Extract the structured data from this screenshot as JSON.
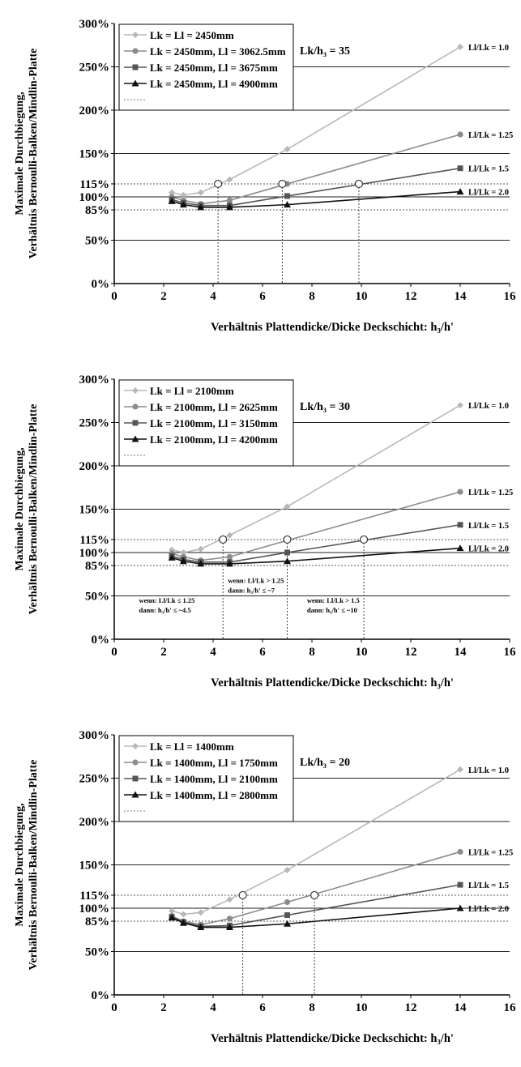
{
  "chart_data": [
    {
      "type": "line",
      "ylabel": "Maximale Durchbiegung,\nVerhältnis Bernoulli-Balken/Mindlin-Platte",
      "xlabel": "Verhältnis Plattendicke/Dicke Deckschicht: h₃/h'",
      "xlim": [
        0,
        16
      ],
      "ylim": [
        0,
        300
      ],
      "xticks": [
        0,
        2,
        4,
        6,
        8,
        10,
        12,
        14,
        16
      ],
      "yticks": [
        {
          "value": 0,
          "label": "0%"
        },
        {
          "value": 50,
          "label": "50%"
        },
        {
          "value": 85,
          "label": "85%"
        },
        {
          "value": 100,
          "label": "100%"
        },
        {
          "value": 115,
          "label": "115%"
        },
        {
          "value": 150,
          "label": "150%"
        },
        {
          "value": 200,
          "label": "200%"
        },
        {
          "value": 250,
          "label": "250%"
        },
        {
          "value": 300,
          "label": "300%"
        }
      ],
      "legend_placement": "top-left",
      "annotation": "Lk/h₃ = 35",
      "series": [
        {
          "name": "Lk = Ll = 2450mm",
          "marker": "diamond",
          "color": "#b8b8b8",
          "end_label": "Ll/Lk = 1.0",
          "x": [
            2.33,
            2.8,
            3.5,
            4.67,
            7,
            14
          ],
          "y": [
            105,
            102,
            105,
            120,
            155,
            273
          ]
        },
        {
          "name": "Lk = 2450mm, Ll = 3062.5mm",
          "marker": "circle",
          "color": "#8c8c8c",
          "end_label": "Ll/Lk = 1.25",
          "x": [
            2.33,
            2.8,
            3.5,
            4.67,
            7,
            14
          ],
          "y": [
            100,
            96,
            92,
            96,
            115,
            172
          ]
        },
        {
          "name": "Lk = 2450mm, Ll = 3675mm",
          "marker": "square",
          "color": "#555555",
          "end_label": "Ll/Lk = 1.5",
          "x": [
            2.33,
            2.8,
            3.5,
            4.67,
            7,
            14
          ],
          "y": [
            97,
            93,
            90,
            90,
            101,
            133
          ]
        },
        {
          "name": "Lk = 2450mm, Ll = 4900mm",
          "marker": "triangle",
          "color": "#111111",
          "end_label": "Ll/Lk = 2.0",
          "x": [
            2.33,
            2.8,
            3.5,
            4.67,
            7,
            14
          ],
          "y": [
            95,
            91,
            88,
            88,
            91,
            106
          ]
        }
      ],
      "intersections": [
        {
          "x": 4.2,
          "y": 115
        },
        {
          "x": 6.8,
          "y": 115
        },
        {
          "x": 9.9,
          "y": 115
        }
      ],
      "notes": []
    },
    {
      "type": "line",
      "ylabel": "Maximale Durchbiegung,\nVerhältnis Bernoulli-Balken/Mindlin-Platte",
      "xlabel": "Verhältnis Plattendicke/Dicke Deckschicht: h₃/h'",
      "xlim": [
        0,
        16
      ],
      "ylim": [
        0,
        300
      ],
      "xticks": [
        0,
        2,
        4,
        6,
        8,
        10,
        12,
        14,
        16
      ],
      "yticks": [
        {
          "value": 0,
          "label": "0%"
        },
        {
          "value": 50,
          "label": "50%"
        },
        {
          "value": 85,
          "label": "85%"
        },
        {
          "value": 100,
          "label": "100%"
        },
        {
          "value": 115,
          "label": "115%"
        },
        {
          "value": 150,
          "label": "150%"
        },
        {
          "value": 200,
          "label": "200%"
        },
        {
          "value": 250,
          "label": "250%"
        },
        {
          "value": 300,
          "label": "300%"
        }
      ],
      "legend_placement": "top-left",
      "annotation": "Lk/h₃ = 30",
      "series": [
        {
          "name": "Lk = Ll = 2100mm",
          "marker": "diamond",
          "color": "#b8b8b8",
          "end_label": "Ll/Lk = 1.0",
          "x": [
            2.33,
            2.8,
            3.5,
            4.67,
            7,
            14
          ],
          "y": [
            103,
            100,
            104,
            120,
            153,
            270
          ]
        },
        {
          "name": "Lk = 2100mm, Ll = 2625mm",
          "marker": "circle",
          "color": "#8c8c8c",
          "end_label": "Ll/Lk = 1.25",
          "x": [
            2.33,
            2.8,
            3.5,
            4.67,
            7,
            14
          ],
          "y": [
            99,
            95,
            91,
            95,
            114,
            170
          ]
        },
        {
          "name": "Lk = 2100mm, Ll = 3150mm",
          "marker": "square",
          "color": "#555555",
          "end_label": "Ll/Lk = 1.5",
          "x": [
            2.33,
            2.8,
            3.5,
            4.67,
            7,
            14
          ],
          "y": [
            96,
            92,
            89,
            89,
            100,
            132
          ]
        },
        {
          "name": "Lk = 2100mm, Ll = 4200mm",
          "marker": "triangle",
          "color": "#111111",
          "end_label": "Ll/Lk = 2.0",
          "x": [
            2.33,
            2.8,
            3.5,
            4.67,
            7,
            14
          ],
          "y": [
            94,
            90,
            87,
            87,
            90,
            105
          ]
        }
      ],
      "intersections": [
        {
          "x": 4.4,
          "y": 115
        },
        {
          "x": 7.0,
          "y": 115
        },
        {
          "x": 10.1,
          "y": 115
        }
      ],
      "notes": [
        {
          "x": 1.0,
          "y": 42,
          "lines": [
            "wenn: Ll/Lk ≤ 1.25",
            "dann: h₃/h' ≤ ~4.5"
          ]
        },
        {
          "x": 4.6,
          "y": 65,
          "lines": [
            "wenn: Ll/Lk > 1.25",
            "dann: h₃/h' ≤ ~7"
          ]
        },
        {
          "x": 7.8,
          "y": 42,
          "lines": [
            "wenn: Ll/Lk > 1.5",
            "dann: h₃/h' ≤ ~10"
          ]
        }
      ]
    },
    {
      "type": "line",
      "ylabel": "Maximale Durchbiegung,\nVerhältnis Bernoulli-Balken/Mindlin-Platte",
      "xlabel": "Verhältnis Plattendicke/Dicke Deckschicht: h₃/h'",
      "xlim": [
        0,
        16
      ],
      "ylim": [
        0,
        300
      ],
      "xticks": [
        0,
        2,
        4,
        6,
        8,
        10,
        12,
        14,
        16
      ],
      "yticks": [
        {
          "value": 0,
          "label": "0%"
        },
        {
          "value": 50,
          "label": "50%"
        },
        {
          "value": 85,
          "label": "85%"
        },
        {
          "value": 100,
          "label": "100%"
        },
        {
          "value": 115,
          "label": "115%"
        },
        {
          "value": 150,
          "label": "150%"
        },
        {
          "value": 200,
          "label": "200%"
        },
        {
          "value": 250,
          "label": "250%"
        },
        {
          "value": 300,
          "label": "300%"
        }
      ],
      "legend_placement": "top-left",
      "annotation": "Lk/h₃ = 20",
      "series": [
        {
          "name": "Lk = Ll = 1400mm",
          "marker": "diamond",
          "color": "#b8b8b8",
          "end_label": "Ll/Lk = 1.0",
          "x": [
            2.33,
            2.8,
            3.5,
            4.67,
            7,
            14
          ],
          "y": [
            97,
            93,
            95,
            110,
            144,
            260
          ]
        },
        {
          "name": "Lk = 1400mm, Ll = 1750mm",
          "marker": "circle",
          "color": "#8c8c8c",
          "end_label": "Ll/Lk = 1.25",
          "x": [
            2.33,
            2.8,
            3.5,
            4.67,
            7,
            14
          ],
          "y": [
            91,
            85,
            81,
            88,
            107,
            165
          ]
        },
        {
          "name": "Lk = 1400mm, Ll = 2100mm",
          "marker": "square",
          "color": "#555555",
          "end_label": "Ll/Lk = 1.5",
          "x": [
            2.33,
            2.8,
            3.5,
            4.67,
            7,
            14
          ],
          "y": [
            90,
            84,
            79,
            80,
            92,
            127
          ]
        },
        {
          "name": "Lk = 1400mm, Ll = 2800mm",
          "marker": "triangle",
          "color": "#111111",
          "end_label": "Ll/Lk = 2.0",
          "x": [
            2.33,
            2.8,
            3.5,
            4.67,
            7,
            14
          ],
          "y": [
            89,
            83,
            78,
            78,
            82,
            100
          ]
        }
      ],
      "intersections": [
        {
          "x": 5.2,
          "y": 115
        },
        {
          "x": 8.1,
          "y": 115
        }
      ],
      "notes": []
    }
  ]
}
